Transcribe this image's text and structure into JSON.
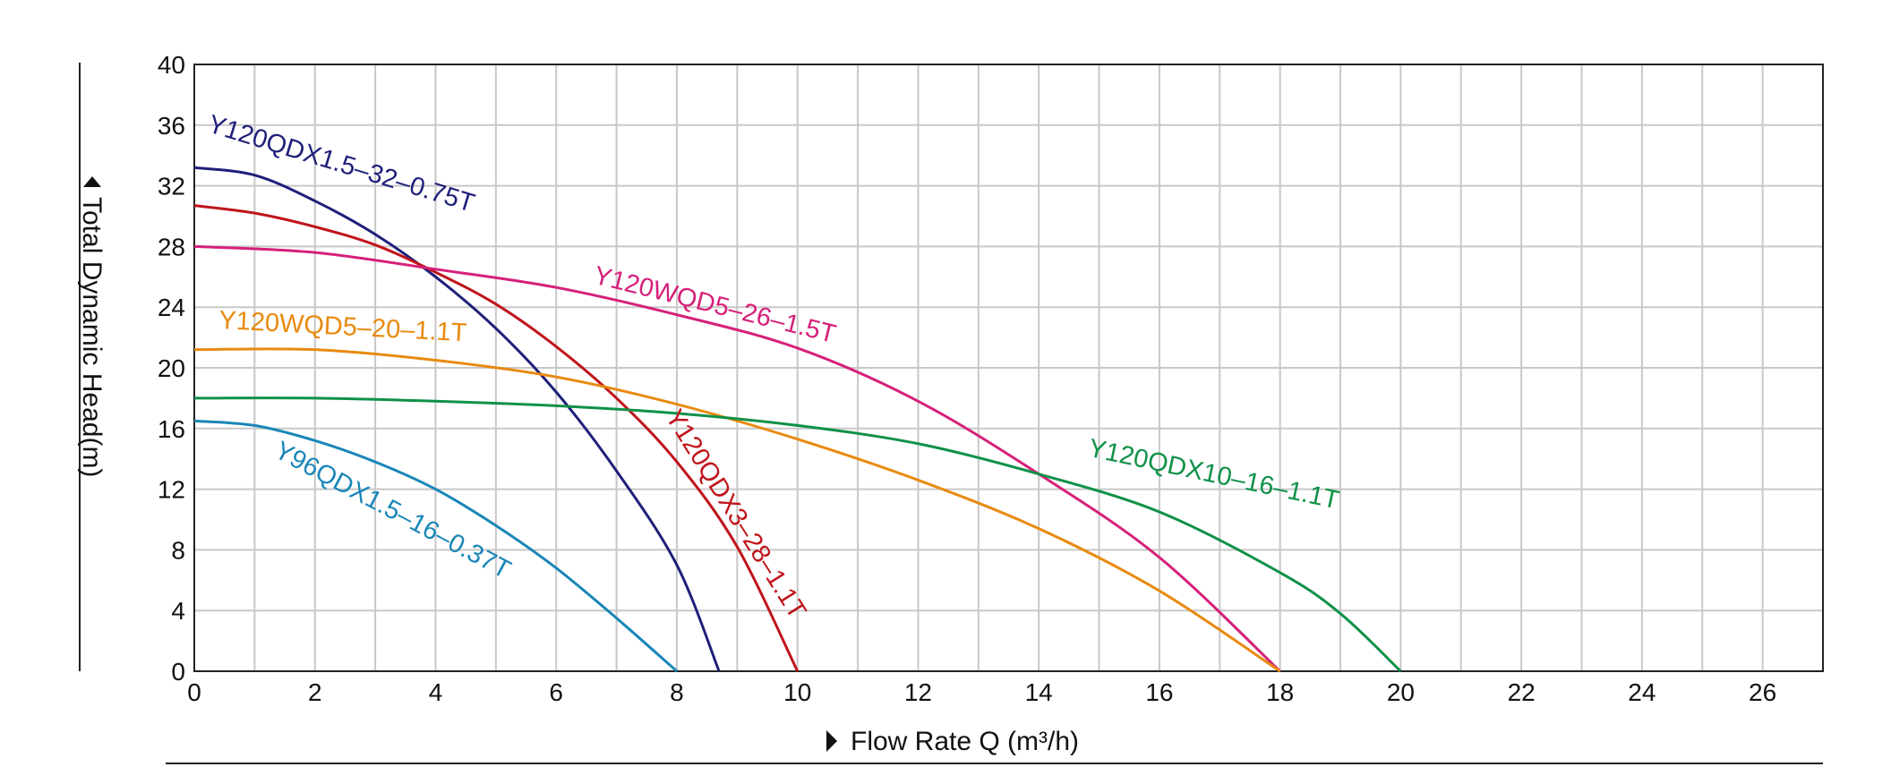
{
  "chart_data": {
    "type": "line",
    "title": "",
    "xlabel": "Flow Rate Q (m³/h)",
    "ylabel": "Total Dynamic Head(m)",
    "xlim": [
      0,
      27
    ],
    "ylim": [
      0,
      40
    ],
    "x_ticks": [
      0,
      2,
      4,
      6,
      8,
      10,
      12,
      14,
      16,
      18,
      20,
      22,
      24,
      26
    ],
    "y_ticks": [
      0,
      4,
      8,
      12,
      16,
      20,
      24,
      28,
      32,
      36,
      40
    ],
    "grid": true,
    "legend": "none (curves labeled inline)",
    "series": [
      {
        "name": "Y120QDX1.5-32-0.75T",
        "color": "#1f1f7a",
        "points": [
          [
            0,
            33.2
          ],
          [
            1,
            32.7
          ],
          [
            2,
            31.0
          ],
          [
            3,
            28.8
          ],
          [
            4,
            26.0
          ],
          [
            5,
            22.6
          ],
          [
            6,
            18.4
          ],
          [
            7,
            13.2
          ],
          [
            8,
            7.0
          ],
          [
            8.7,
            0
          ]
        ]
      },
      {
        "name": "Y120QDX3-28-1.1T",
        "color": "#c0141b",
        "points": [
          [
            0,
            30.7
          ],
          [
            1,
            30.2
          ],
          [
            2,
            29.3
          ],
          [
            3,
            28.1
          ],
          [
            4,
            26.3
          ],
          [
            5,
            24.2
          ],
          [
            6,
            21.4
          ],
          [
            7,
            18.0
          ],
          [
            8,
            13.8
          ],
          [
            9,
            8.2
          ],
          [
            10,
            0
          ]
        ]
      },
      {
        "name": "Y120WQD5-26-1.5T",
        "color": "#d6207a",
        "points": [
          [
            0,
            28.0
          ],
          [
            2,
            27.6
          ],
          [
            4,
            26.5
          ],
          [
            6,
            25.3
          ],
          [
            8,
            23.5
          ],
          [
            10,
            21.3
          ],
          [
            12,
            17.8
          ],
          [
            14,
            13.0
          ],
          [
            16,
            7.5
          ],
          [
            18,
            0
          ]
        ]
      },
      {
        "name": "Y120WQD5-20-1.1T",
        "color": "#e88a10",
        "points": [
          [
            0,
            21.2
          ],
          [
            2,
            21.2
          ],
          [
            4,
            20.5
          ],
          [
            6,
            19.4
          ],
          [
            8,
            17.6
          ],
          [
            10,
            15.3
          ],
          [
            12,
            12.6
          ],
          [
            14,
            9.4
          ],
          [
            16,
            5.3
          ],
          [
            18,
            0
          ]
        ]
      },
      {
        "name": "Y120QDX10-16-1.1T",
        "color": "#0f9148",
        "points": [
          [
            0,
            18.0
          ],
          [
            2,
            18.0
          ],
          [
            4,
            17.8
          ],
          [
            6,
            17.5
          ],
          [
            8,
            17.0
          ],
          [
            10,
            16.2
          ],
          [
            12,
            15.0
          ],
          [
            14,
            13.0
          ],
          [
            16,
            10.5
          ],
          [
            18,
            6.5
          ],
          [
            19,
            3.8
          ],
          [
            20,
            0
          ]
        ]
      },
      {
        "name": "Y96QDX1.5-16-0.37T",
        "color": "#1a86b8",
        "points": [
          [
            0,
            16.5
          ],
          [
            1,
            16.2
          ],
          [
            2,
            15.2
          ],
          [
            3,
            13.8
          ],
          [
            4,
            12.0
          ],
          [
            5,
            9.6
          ],
          [
            6,
            6.8
          ],
          [
            7,
            3.5
          ],
          [
            8,
            0
          ]
        ]
      }
    ]
  }
}
